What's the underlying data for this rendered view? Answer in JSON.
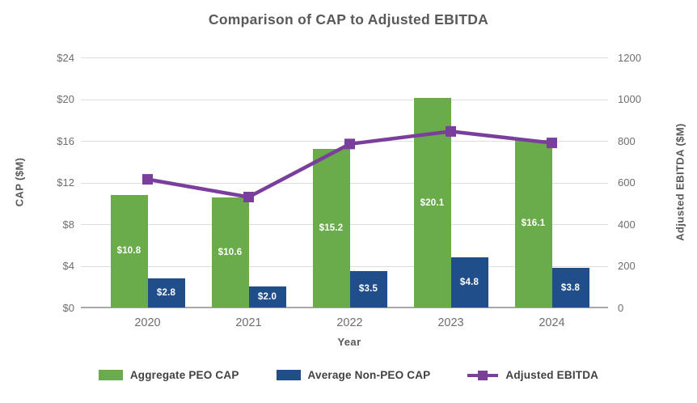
{
  "title": "Comparison of CAP to Adjusted EBITDA",
  "colors": {
    "aggregate_peo_cap": "#6aab4c",
    "average_non_peo_cap": "#1f4e8a",
    "adjusted_ebitda": "#7a3f9d",
    "title_text": "#58595b",
    "tick_text": "#6d6e71",
    "gridline": "#dededf",
    "axis_line": "#a6a8ab"
  },
  "chart_data": {
    "type": "bar",
    "subtype": "grouped-bar-with-line",
    "categories": [
      "2020",
      "2021",
      "2022",
      "2023",
      "2024"
    ],
    "series": [
      {
        "name": "Aggregate PEO CAP",
        "type": "bar",
        "axis": "left",
        "color": "#6aab4c",
        "values": [
          10.8,
          10.6,
          15.2,
          20.1,
          16.1
        ],
        "labels": [
          "$10.8",
          "$10.6",
          "$15.2",
          "$20.1",
          "$16.1"
        ]
      },
      {
        "name": "Average Non-PEO CAP",
        "type": "bar",
        "axis": "left",
        "color": "#1f4e8a",
        "values": [
          2.8,
          2.0,
          3.5,
          4.8,
          3.8
        ],
        "labels": [
          "$2.8",
          "$2.0",
          "$3.5",
          "$4.8",
          "$3.8"
        ]
      },
      {
        "name": "Adjusted EBITDA",
        "type": "line",
        "axis": "right",
        "color": "#7a3f9d",
        "values": [
          615,
          530,
          785,
          845,
          790
        ],
        "values_note": "estimated from gridlines; no data labels shown"
      }
    ],
    "xlabel": "Year",
    "left_axis": {
      "label": "CAP ($M)",
      "min": 0,
      "max": 24,
      "tick_step": 4,
      "tick_labels": [
        "$0",
        "$4",
        "$8",
        "$12",
        "$16",
        "$20",
        "$24"
      ]
    },
    "right_axis": {
      "label": "Adjusted EBITDA ($M)",
      "min": 0,
      "max": 1200,
      "tick_step": 200,
      "tick_labels": [
        "0",
        "200",
        "400",
        "600",
        "800",
        "1000",
        "1200"
      ]
    },
    "grid": true,
    "legend_position": "bottom"
  }
}
